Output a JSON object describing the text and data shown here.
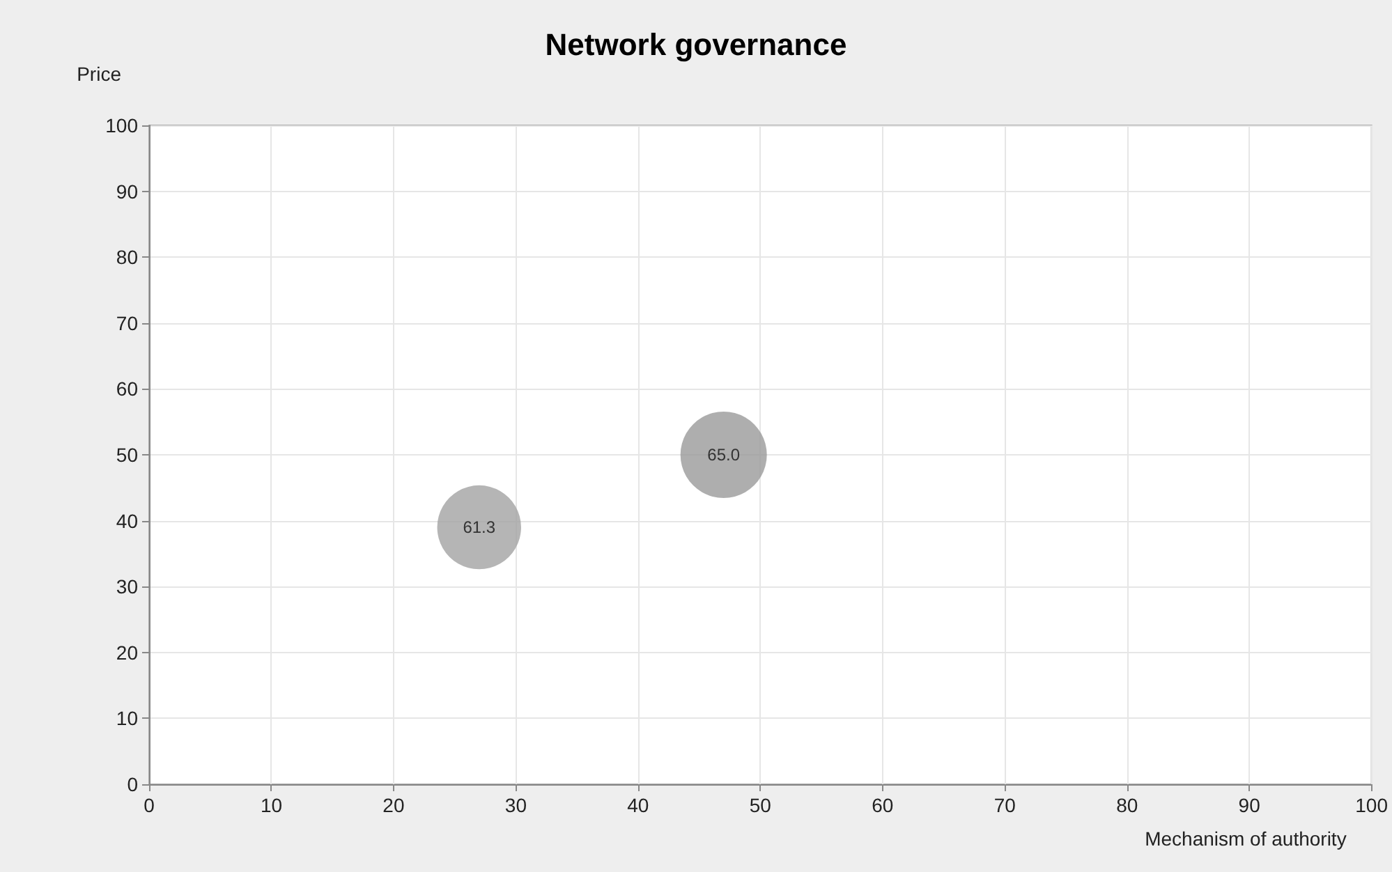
{
  "chart_data": {
    "type": "bubble",
    "title": "Network governance",
    "xlabel": "Mechanism of authority",
    "ylabel": "Price",
    "x": [
      27,
      47
    ],
    "values": [
      39,
      50
    ],
    "sizes": [
      0.943,
      1
    ],
    "colors": [
      "#a3a3a3",
      "#9a9a9a"
    ],
    "annotations": [
      {
        "text": "61.3",
        "x": 27,
        "y": 39
      },
      {
        "text": "65.0",
        "x": 47,
        "y": 50
      }
    ],
    "xlim": [
      0,
      100
    ],
    "xticks": [
      0,
      10,
      20,
      30,
      40,
      50,
      60,
      70,
      80,
      90,
      100
    ],
    "ylim": [
      0,
      100
    ],
    "yticks": [
      0,
      10,
      20,
      30,
      40,
      50,
      60,
      70,
      80,
      90,
      100
    ],
    "grid": true
  }
}
